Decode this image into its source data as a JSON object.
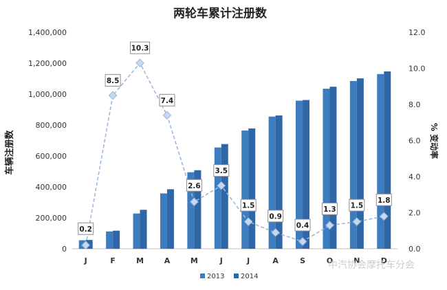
{
  "chart_data": {
    "type": "bar",
    "title": "两轮车累计注册数",
    "ylabel": "车辆注册数",
    "y2label": "% 变动率",
    "categories": [
      "J",
      "F",
      "M",
      "A",
      "M",
      "J",
      "J",
      "A",
      "S",
      "O",
      "N",
      "D"
    ],
    "ylim": [
      0,
      1400000
    ],
    "y2lim": [
      0,
      12
    ],
    "yticks": [
      "0",
      "200,000",
      "400,000",
      "600,000",
      "800,000",
      "1,000,000",
      "1,200,000",
      "1,400,000"
    ],
    "y2ticks": [
      "0.0",
      "2.0",
      "4.0",
      "6.0",
      "8.0",
      "10.0",
      "12.0"
    ],
    "series": [
      {
        "name": "2013",
        "type": "bar",
        "values": [
          55000,
          112000,
          228000,
          358000,
          495000,
          655000,
          765000,
          855000,
          958000,
          1035000,
          1085000,
          1130000
        ]
      },
      {
        "name": "2014",
        "type": "bar",
        "values": [
          57000,
          117000,
          252000,
          385000,
          508000,
          677000,
          778000,
          862000,
          962000,
          1048000,
          1102000,
          1147000
        ]
      },
      {
        "name": "变动率",
        "type": "line",
        "axis": "secondary",
        "values": [
          0.2,
          8.5,
          10.3,
          7.4,
          2.6,
          3.5,
          1.5,
          0.9,
          0.4,
          1.3,
          1.5,
          1.8
        ]
      }
    ],
    "data_labels": [
      "0.2",
      "8.5",
      "10.3",
      "7.4",
      "2.6",
      "3.5",
      "1.5",
      "0.9",
      "0.4",
      "1.3",
      "1.5",
      "1.8"
    ],
    "legend": [
      "2013",
      "2014"
    ],
    "legend_position": "bottom",
    "grid": false,
    "colors": {
      "s2013": "#3d7cbf",
      "s2014": "#2f66a6",
      "line": "#9bb7dc",
      "marker": "#c8d8ee"
    }
  },
  "watermark": "中汽协会摩托车分会"
}
